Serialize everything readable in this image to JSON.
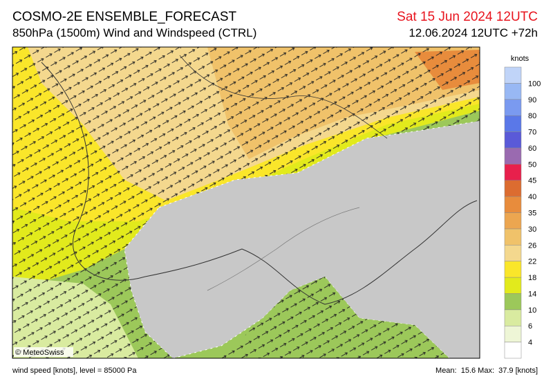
{
  "header": {
    "title": "COSMO-2E ENSEMBLE_FORECAST",
    "subtitle": "850hPa (1500m) Wind and Windspeed (CTRL)",
    "valid_time": "Sat 15 Jun 2024 12UTC",
    "run_time": "12.06.2024 12UTC +72h"
  },
  "colorbar": {
    "unit": "knots",
    "labels": [
      4,
      6,
      10,
      14,
      18,
      22,
      26,
      30,
      35,
      40,
      45,
      50,
      60,
      70,
      80,
      90,
      100
    ],
    "colors": [
      "#ffffff",
      "#eef6d6",
      "#d9eba0",
      "#9cc85a",
      "#e2ea1c",
      "#fae62a",
      "#f4d88e",
      "#f0c26a",
      "#eca650",
      "#e88c3c",
      "#dc6c30",
      "#e8204c",
      "#9a6ab0",
      "#5a5ad8",
      "#5a78e8",
      "#7a9af0",
      "#98b8f4",
      "#c0d4f8"
    ]
  },
  "map": {
    "copyright": "© MeteoSwiss"
  },
  "footer": {
    "left": "wind speed [knots], level = 85000 Pa",
    "right": "Mean:  15.6 Max:  37.9 [knots]"
  }
}
